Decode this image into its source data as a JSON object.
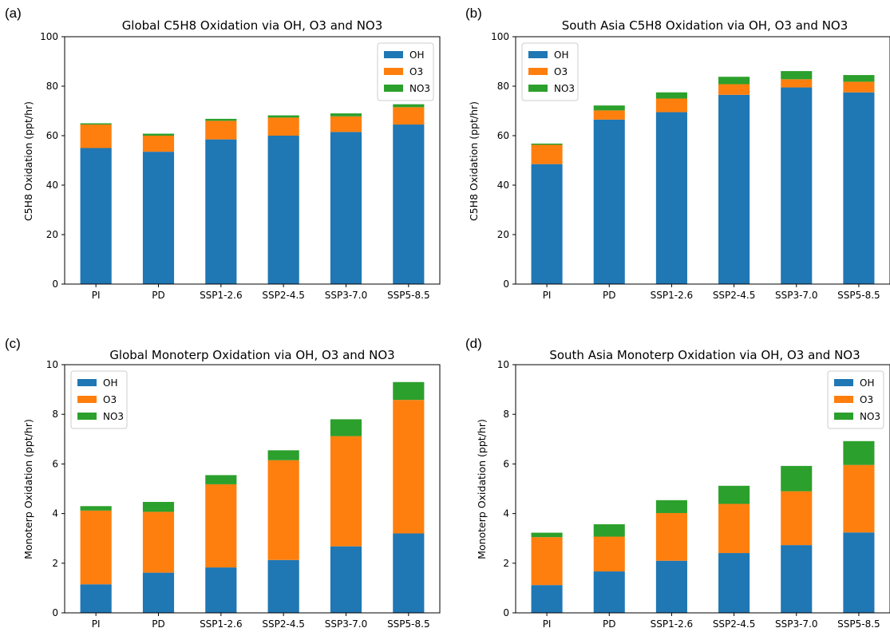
{
  "colors": {
    "OH": "#1f77b4",
    "O3": "#ff7f0e",
    "NO3": "#2ca02c"
  },
  "chart_data": [
    {
      "type": "bar",
      "stacked": true,
      "panel_label": "(a)",
      "title": "Global C5H8 Oxidation via OH, O3 and NO3",
      "xlabel": "",
      "ylabel": "C5H8 Oxidation (ppt/hr)",
      "ylim": [
        0,
        100
      ],
      "yticks": [
        0,
        20,
        40,
        60,
        80,
        100
      ],
      "categories": [
        "PI",
        "PD",
        "SSP1-2.6",
        "SSP2-4.5",
        "SSP3-7.0",
        "SSP5-8.5"
      ],
      "legend_position": "upper right",
      "series": [
        {
          "name": "OH",
          "values": [
            55.0,
            53.5,
            58.5,
            60.0,
            61.5,
            64.5
          ]
        },
        {
          "name": "O3",
          "values": [
            9.5,
            6.5,
            7.5,
            7.3,
            6.3,
            7.0
          ]
        },
        {
          "name": "NO3",
          "values": [
            0.5,
            0.8,
            0.8,
            0.9,
            1.2,
            1.2
          ]
        }
      ]
    },
    {
      "type": "bar",
      "stacked": true,
      "panel_label": "(b)",
      "title": "South Asia C5H8 Oxidation via OH, O3 and NO3",
      "xlabel": "",
      "ylabel": "C5H8 Oxidation (ppt/hr)",
      "ylim": [
        0,
        100
      ],
      "yticks": [
        0,
        20,
        40,
        60,
        80,
        100
      ],
      "categories": [
        "PI",
        "PD",
        "SSP1-2.6",
        "SSP2-4.5",
        "SSP3-7.0",
        "SSP5-8.5"
      ],
      "legend_position": "upper left",
      "series": [
        {
          "name": "OH",
          "values": [
            48.5,
            66.5,
            69.5,
            76.5,
            79.5,
            77.5
          ]
        },
        {
          "name": "O3",
          "values": [
            7.8,
            3.7,
            5.5,
            4.3,
            3.3,
            4.3
          ]
        },
        {
          "name": "NO3",
          "values": [
            0.5,
            2.0,
            2.5,
            3.0,
            3.3,
            2.7
          ]
        }
      ]
    },
    {
      "type": "bar",
      "stacked": true,
      "panel_label": "(c)",
      "title": "Global Monoterp Oxidation via OH, O3 and NO3",
      "xlabel": "",
      "ylabel": "Monoterp Oxidation (ppt/hr)",
      "ylim": [
        0,
        10
      ],
      "yticks": [
        0,
        2,
        4,
        6,
        8,
        10
      ],
      "categories": [
        "PI",
        "PD",
        "SSP1-2.6",
        "SSP2-4.5",
        "SSP3-7.0",
        "SSP5-8.5"
      ],
      "legend_position": "upper left",
      "series": [
        {
          "name": "OH",
          "values": [
            1.15,
            1.62,
            1.83,
            2.13,
            2.68,
            3.2
          ]
        },
        {
          "name": "O3",
          "values": [
            2.97,
            2.45,
            3.35,
            4.02,
            4.44,
            5.38
          ]
        },
        {
          "name": "NO3",
          "values": [
            0.18,
            0.4,
            0.37,
            0.4,
            0.68,
            0.72
          ]
        }
      ]
    },
    {
      "type": "bar",
      "stacked": true,
      "panel_label": "(d)",
      "title": "South Asia Monoterp Oxidation via OH, O3 and NO3",
      "xlabel": "",
      "ylabel": "Monoterp Oxidation (ppt/hr)",
      "ylim": [
        0,
        10
      ],
      "yticks": [
        0,
        2,
        4,
        6,
        8,
        10
      ],
      "categories": [
        "PI",
        "PD",
        "SSP1-2.6",
        "SSP2-4.5",
        "SSP3-7.0",
        "SSP5-8.5"
      ],
      "legend_position": "upper right",
      "series": [
        {
          "name": "OH",
          "values": [
            1.12,
            1.67,
            2.1,
            2.41,
            2.73,
            3.24
          ]
        },
        {
          "name": "O3",
          "values": [
            1.93,
            1.4,
            1.92,
            1.98,
            2.17,
            2.72
          ]
        },
        {
          "name": "NO3",
          "values": [
            0.18,
            0.5,
            0.52,
            0.73,
            1.02,
            0.96
          ]
        }
      ]
    }
  ]
}
